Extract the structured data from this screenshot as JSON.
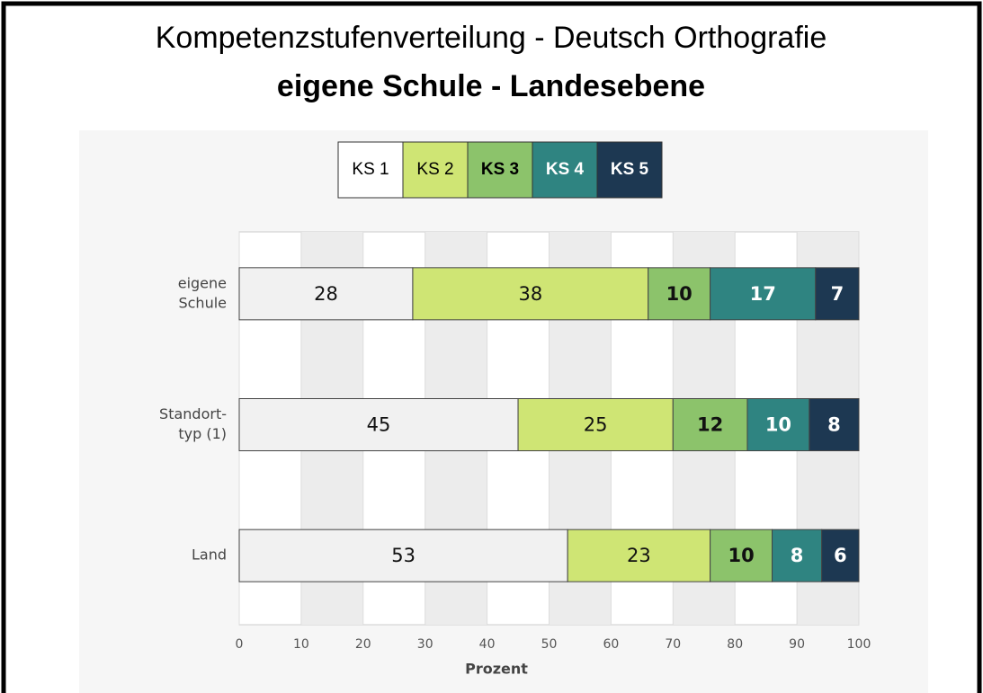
{
  "chart_data": {
    "type": "stacked_barh",
    "title": "Kompetenzstufenverteilung - Deutsch Orthografie",
    "subtitle": "eigene Schule - Landesebene",
    "categories": [
      [
        "eigene",
        "Schule"
      ],
      [
        "Standort-",
        "typ (1)"
      ],
      [
        "Land"
      ]
    ],
    "series": [
      {
        "name": "KS 1",
        "color": "#f1f1f1",
        "values": [
          28,
          45,
          53
        ]
      },
      {
        "name": "KS 2",
        "color": "#cfe574",
        "values": [
          38,
          25,
          23
        ]
      },
      {
        "name": "KS 3",
        "color": "#8cc36b",
        "values": [
          10,
          12,
          10
        ]
      },
      {
        "name": "KS 4",
        "color": "#2f8481",
        "values": [
          17,
          10,
          8
        ]
      },
      {
        "name": "KS 5",
        "color": "#1d3852",
        "values": [
          7,
          8,
          6
        ]
      }
    ],
    "xlabel": "Prozent",
    "xlim": [
      0,
      100
    ],
    "xticks": [
      0,
      10,
      20,
      30,
      40,
      50,
      60,
      70,
      80,
      90,
      100
    ],
    "grid": true
  }
}
